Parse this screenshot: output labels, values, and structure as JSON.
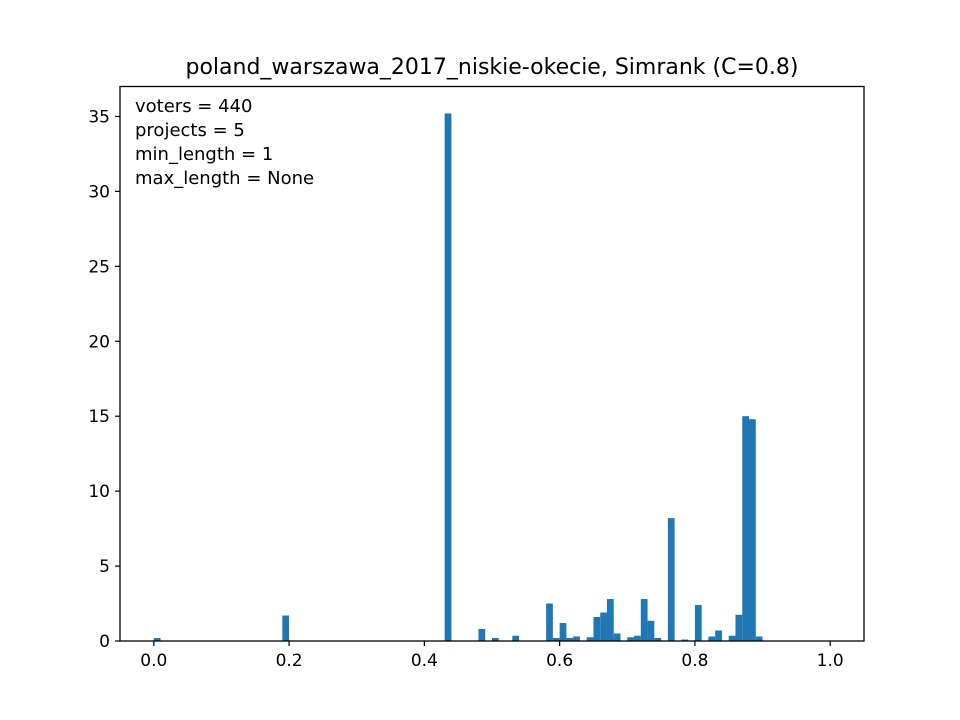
{
  "chart_data": {
    "type": "bar",
    "title": "poland_warszawa_2017_niskie-okecie, Simrank (C=0.8)",
    "xlabel": "",
    "ylabel": "",
    "xlim": [
      -0.05,
      1.05
    ],
    "ylim": [
      0,
      37
    ],
    "xticks": [
      {
        "value": 0.0,
        "label": "0.0"
      },
      {
        "value": 0.2,
        "label": "0.2"
      },
      {
        "value": 0.4,
        "label": "0.4"
      },
      {
        "value": 0.6,
        "label": "0.6"
      },
      {
        "value": 0.8,
        "label": "0.8"
      },
      {
        "value": 1.0,
        "label": "1.0"
      }
    ],
    "yticks": [
      {
        "value": 0,
        "label": "0"
      },
      {
        "value": 5,
        "label": "5"
      },
      {
        "value": 10,
        "label": "10"
      },
      {
        "value": 15,
        "label": "15"
      },
      {
        "value": 20,
        "label": "20"
      },
      {
        "value": 25,
        "label": "25"
      },
      {
        "value": 30,
        "label": "30"
      },
      {
        "value": 35,
        "label": "35"
      }
    ],
    "annotations": [
      "voters = 440",
      "projects = 5",
      "min_length = 1",
      "max_length = None"
    ],
    "color": "#1f77b4",
    "bin_width": 0.01,
    "bins": [
      {
        "x": 0.0,
        "y": 0.2
      },
      {
        "x": 0.19,
        "y": 1.7
      },
      {
        "x": 0.43,
        "y": 35.2
      },
      {
        "x": 0.48,
        "y": 0.8
      },
      {
        "x": 0.5,
        "y": 0.2
      },
      {
        "x": 0.53,
        "y": 0.35
      },
      {
        "x": 0.58,
        "y": 2.5
      },
      {
        "x": 0.59,
        "y": 0.2
      },
      {
        "x": 0.6,
        "y": 1.2
      },
      {
        "x": 0.61,
        "y": 0.2
      },
      {
        "x": 0.62,
        "y": 0.3
      },
      {
        "x": 0.64,
        "y": 0.25
      },
      {
        "x": 0.65,
        "y": 1.6
      },
      {
        "x": 0.66,
        "y": 1.9
      },
      {
        "x": 0.67,
        "y": 2.8
      },
      {
        "x": 0.68,
        "y": 0.5
      },
      {
        "x": 0.7,
        "y": 0.25
      },
      {
        "x": 0.71,
        "y": 0.35
      },
      {
        "x": 0.72,
        "y": 2.8
      },
      {
        "x": 0.73,
        "y": 1.35
      },
      {
        "x": 0.74,
        "y": 0.2
      },
      {
        "x": 0.76,
        "y": 8.2
      },
      {
        "x": 0.78,
        "y": 0.1
      },
      {
        "x": 0.8,
        "y": 2.4
      },
      {
        "x": 0.82,
        "y": 0.3
      },
      {
        "x": 0.83,
        "y": 0.7
      },
      {
        "x": 0.85,
        "y": 0.35
      },
      {
        "x": 0.86,
        "y": 1.75
      },
      {
        "x": 0.87,
        "y": 15.0
      },
      {
        "x": 0.88,
        "y": 14.8
      },
      {
        "x": 0.89,
        "y": 0.3
      }
    ]
  }
}
